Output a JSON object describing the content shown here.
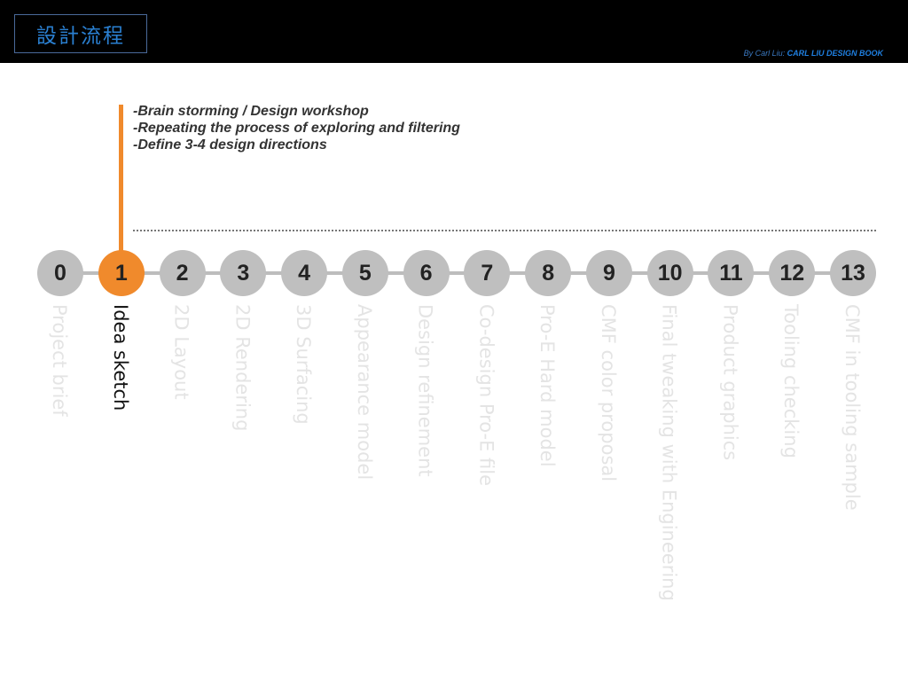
{
  "header": {
    "title": "設計流程",
    "credit_prefix": "By Carl Liu:",
    "credit_book": "CARL LIU DESIGN BOOK"
  },
  "notes": [
    "-Brain storming / Design workshop",
    "-Repeating the process of exploring and filtering",
    "-Define 3-4 design directions"
  ],
  "active_step": 1,
  "accent_color": "#f08a2c",
  "steps": [
    {
      "num": "0",
      "label": "Project brief"
    },
    {
      "num": "1",
      "label": "Idea sketch"
    },
    {
      "num": "2",
      "label": "2D Layout"
    },
    {
      "num": "3",
      "label": "2D Rendering"
    },
    {
      "num": "4",
      "label": "3D Surfacing"
    },
    {
      "num": "5",
      "label": "Appearance model"
    },
    {
      "num": "6",
      "label": "Design refinement"
    },
    {
      "num": "7",
      "label": "Co-design Pro-E file"
    },
    {
      "num": "8",
      "label": "Pro-E Hard model"
    },
    {
      "num": "9",
      "label": "CMF color proposal"
    },
    {
      "num": "10",
      "label": "Final tweaking with Engineering"
    },
    {
      "num": "11",
      "label": "Product graphics"
    },
    {
      "num": "12",
      "label": "Tooling checking"
    },
    {
      "num": "13",
      "label": "CMF in tooling sample"
    }
  ]
}
